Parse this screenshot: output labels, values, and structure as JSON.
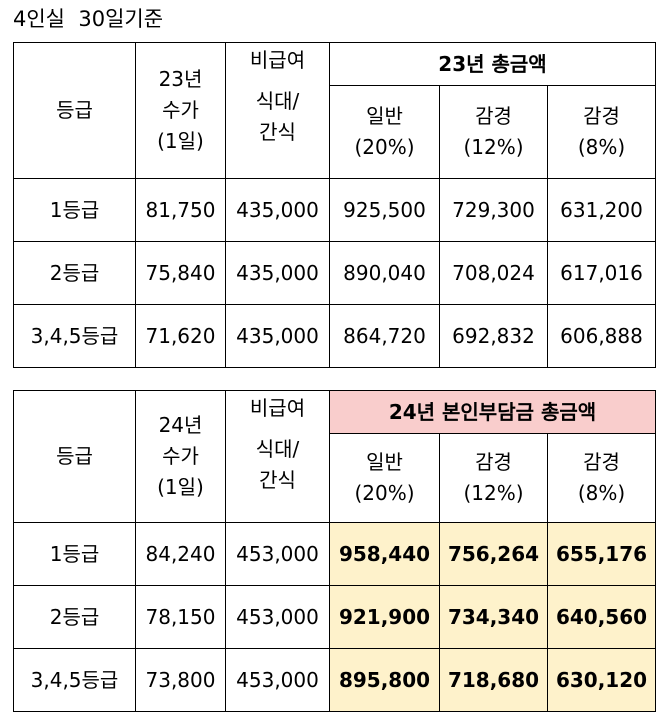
{
  "caption": "4인실  30일기준",
  "tables": [
    {
      "grade_header": "등급",
      "rate_header": [
        "23년",
        "수가",
        "(1일)"
      ],
      "noncov_header": [
        "비급여",
        "식대/",
        "간식"
      ],
      "group_header": "23년  총금액",
      "sub_headers": [
        [
          "일반",
          "(20%)"
        ],
        [
          "감경",
          "(12%)"
        ],
        [
          "감경",
          "(8%)"
        ]
      ],
      "rows": [
        {
          "grade": "1등급",
          "rate": "81,750",
          "noncov": "435,000",
          "general": "925,500",
          "reduced12": "729,300",
          "reduced8": "631,200"
        },
        {
          "grade": "2등급",
          "rate": "75,840",
          "noncov": "435,000",
          "general": "890,040",
          "reduced12": "708,024",
          "reduced8": "617,016"
        },
        {
          "grade": "3,4,5등급",
          "rate": "71,620",
          "noncov": "435,000",
          "general": "864,720",
          "reduced12": "692,832",
          "reduced8": "606,888"
        }
      ]
    },
    {
      "grade_header": "등급",
      "rate_header": [
        "24년",
        "수가",
        "(1일)"
      ],
      "noncov_header": [
        "비급여",
        "식대/",
        "간식"
      ],
      "group_header": "24년  본인부담금  총금액",
      "sub_headers": [
        [
          "일반",
          "(20%)"
        ],
        [
          "감경",
          "(12%)"
        ],
        [
          "감경",
          "(8%)"
        ]
      ],
      "rows": [
        {
          "grade": "1등급",
          "rate": "84,240",
          "noncov": "453,000",
          "general": "958,440",
          "reduced12": "756,264",
          "reduced8": "655,176"
        },
        {
          "grade": "2등급",
          "rate": "78,150",
          "noncov": "453,000",
          "general": "921,900",
          "reduced12": "734,340",
          "reduced8": "640,560"
        },
        {
          "grade": "3,4,5등급",
          "rate": "73,800",
          "noncov": "453,000",
          "general": "895,800",
          "reduced12": "718,680",
          "reduced8": "630,120"
        }
      ]
    }
  ],
  "colors": {
    "group_header_2024_bg": "#f9cdcc",
    "totals_2024_bg": "#fef2cb",
    "border": "#000000"
  }
}
